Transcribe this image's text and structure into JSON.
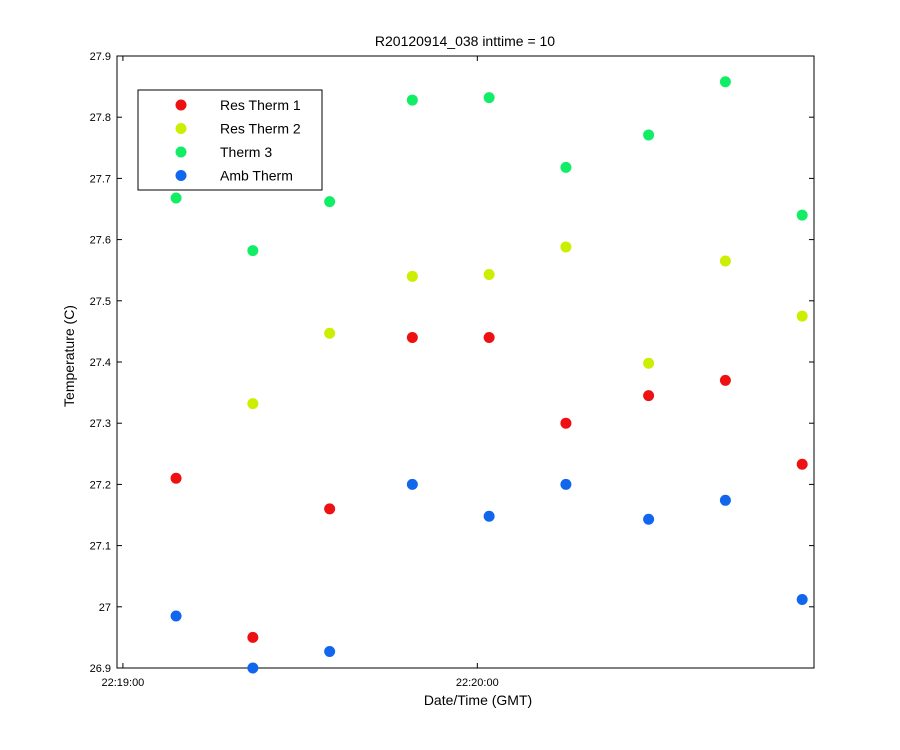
{
  "chart_data": {
    "type": "scatter",
    "title": "R20120914_038 inttime = 10",
    "xlabel": "Date/Time (GMT)",
    "ylabel": "Temperature (C)",
    "xlim": [
      "22:18:59",
      "22:20:57"
    ],
    "ylim": [
      26.9,
      27.9
    ],
    "x_ticks": [
      "22:19:00",
      "22:20:00"
    ],
    "y_ticks": [
      "26.9",
      "27",
      "27.1",
      "27.2",
      "27.3",
      "27.4",
      "27.5",
      "27.6",
      "27.7",
      "27.8",
      "27.9"
    ],
    "grid": false,
    "legend_position": "top-left",
    "x": [
      "22:19:09",
      "22:19:22",
      "22:19:35",
      "22:19:49",
      "22:20:02",
      "22:20:15",
      "22:20:29",
      "22:20:42",
      "22:20:55"
    ],
    "series": [
      {
        "name": "Res Therm 1",
        "color": "#ee1111",
        "values": [
          27.21,
          26.95,
          27.16,
          27.44,
          27.44,
          27.3,
          27.345,
          27.37,
          27.233
        ]
      },
      {
        "name": "Res Therm 2",
        "color": "#ccee00",
        "values": [
          null,
          27.332,
          27.447,
          27.54,
          27.543,
          27.588,
          27.398,
          27.565,
          27.475
        ]
      },
      {
        "name": "Therm 3",
        "color": "#11ee66",
        "values": [
          27.668,
          27.582,
          27.662,
          27.828,
          27.832,
          27.718,
          27.771,
          27.858,
          27.64
        ]
      },
      {
        "name": "Amb Therm",
        "color": "#1166ee",
        "values": [
          26.985,
          26.9,
          26.927,
          27.2,
          27.148,
          27.2,
          27.143,
          27.174,
          27.012
        ]
      }
    ]
  }
}
